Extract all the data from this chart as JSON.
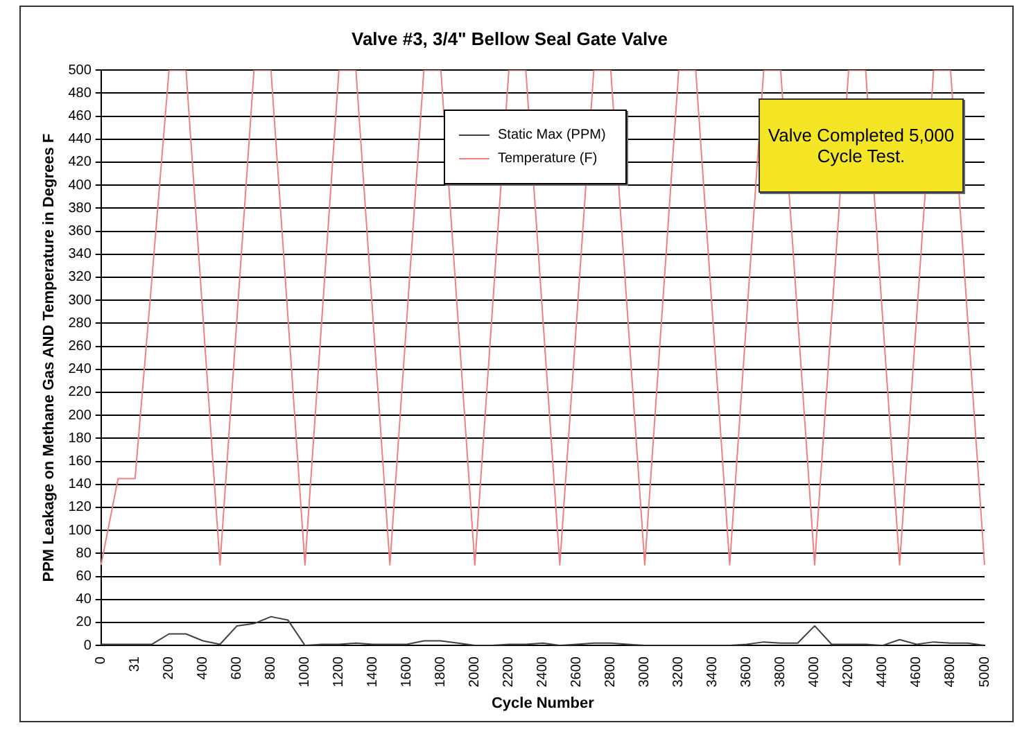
{
  "chart_data": {
    "type": "line",
    "title": "Valve #3, 3/4\" Bellow Seal Gate Valve",
    "xlabel": "Cycle Number",
    "ylabel": "PPM Leakage on Methane Gas AND Temperature in Degrees F",
    "categories": [
      "0",
      null,
      "31",
      null,
      "200",
      null,
      "400",
      null,
      "600",
      null,
      "800",
      null,
      "1000",
      null,
      "1200",
      null,
      "1400",
      null,
      "1600",
      null,
      "1800",
      null,
      "2000",
      null,
      "2200",
      null,
      "2400",
      null,
      "2600",
      null,
      "2800",
      null,
      "3000",
      null,
      "3200",
      null,
      "3400",
      null,
      "3600",
      null,
      "3800",
      null,
      "4000",
      null,
      "4200",
      null,
      "4400",
      null,
      "4600",
      null,
      "4800",
      null,
      "5000"
    ],
    "series": [
      {
        "name": "Static Max (PPM)",
        "color": "#404040",
        "values": [
          1,
          1,
          1,
          1,
          10,
          10,
          4,
          1,
          17,
          19,
          25,
          22,
          0,
          1,
          1,
          2,
          1,
          1,
          1,
          4,
          4,
          2,
          0,
          0,
          1,
          1,
          2,
          0,
          1,
          2,
          2,
          1,
          0,
          0,
          0,
          0,
          0,
          0,
          1,
          3,
          2,
          2,
          17,
          1,
          1,
          1,
          0,
          5,
          1,
          3,
          2,
          2,
          0
        ]
      },
      {
        "name": "Temperature (F)",
        "color": "#f08080",
        "values": [
          70,
          145,
          145,
          320,
          500,
          500,
          285,
          70,
          285,
          500,
          500,
          285,
          70,
          285,
          500,
          500,
          285,
          70,
          285,
          500,
          500,
          285,
          70,
          285,
          500,
          500,
          285,
          70,
          285,
          500,
          500,
          285,
          70,
          285,
          500,
          500,
          285,
          70,
          285,
          500,
          500,
          285,
          70,
          285,
          500,
          500,
          285,
          70,
          285,
          500,
          500,
          285,
          70
        ]
      }
    ],
    "ylim": [
      0,
      500
    ],
    "yticks": [
      0,
      20,
      40,
      60,
      80,
      100,
      120,
      140,
      160,
      180,
      200,
      220,
      240,
      260,
      280,
      300,
      320,
      340,
      360,
      380,
      400,
      420,
      440,
      460,
      480,
      500
    ],
    "grid": "y",
    "legend": "top",
    "marker": "none",
    "line_style": "solid",
    "annotations": [
      "Valve Completed 5,000 Cycle Test."
    ]
  }
}
